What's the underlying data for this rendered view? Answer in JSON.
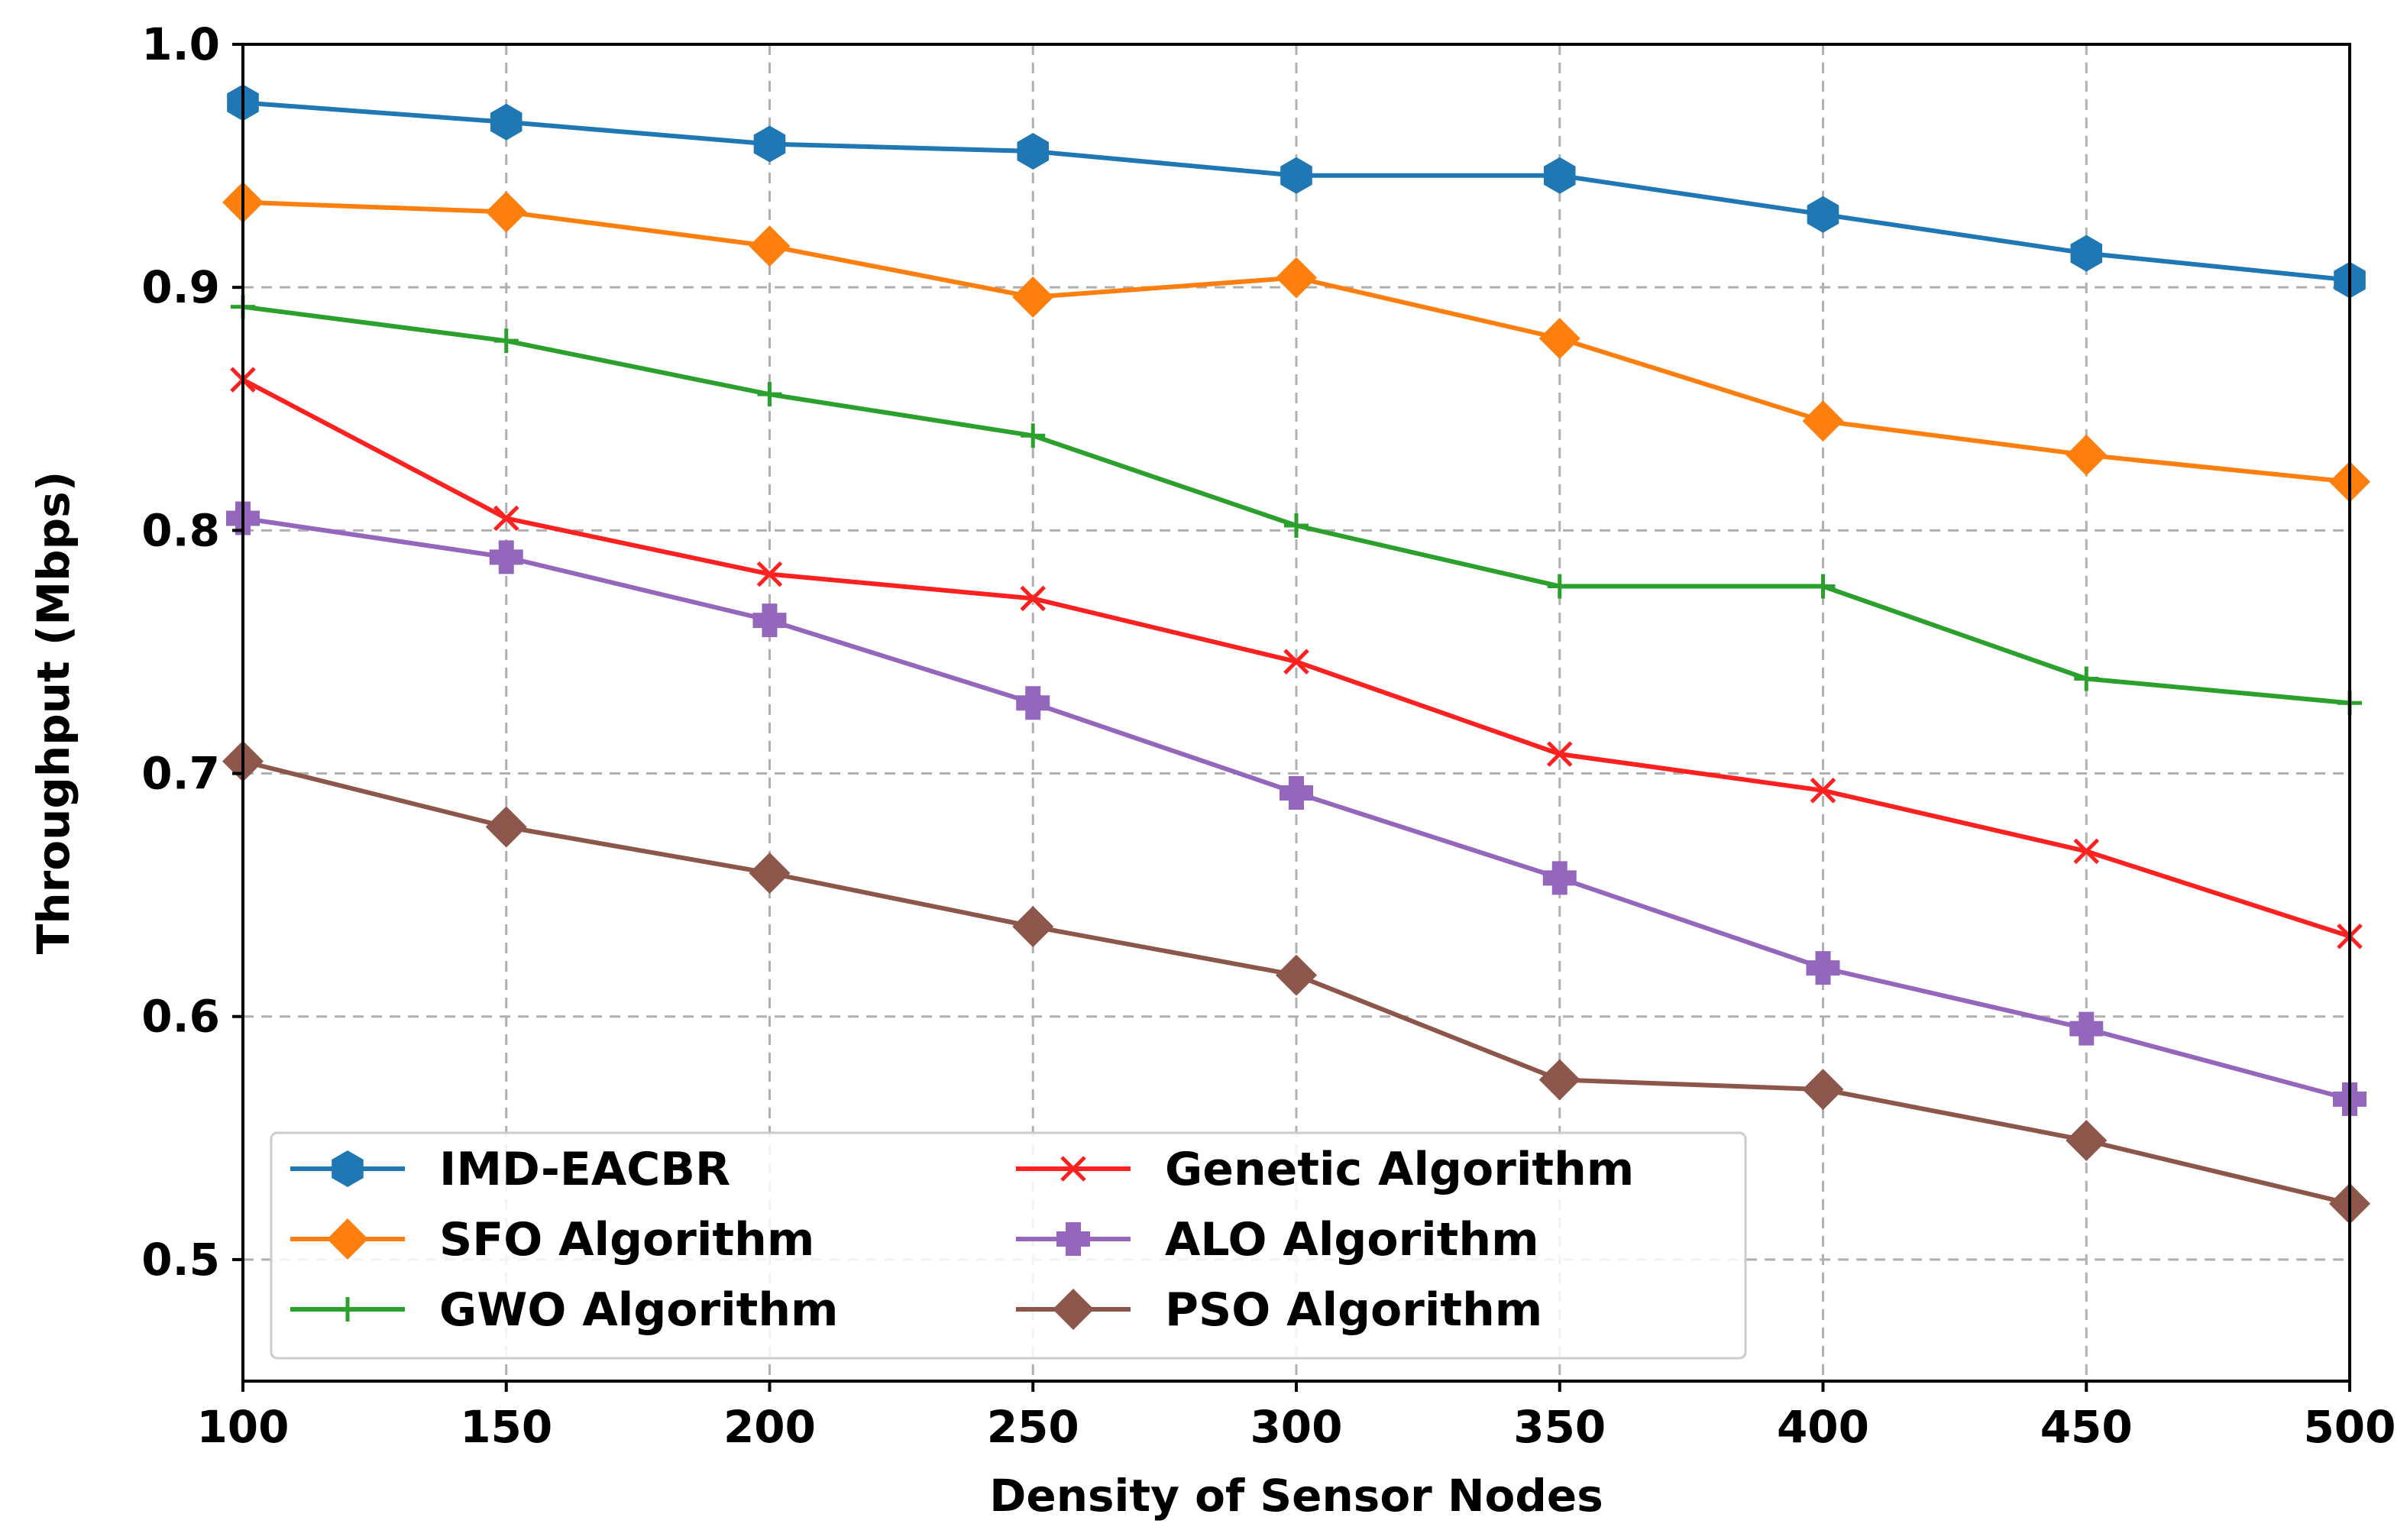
{
  "chart_data": {
    "type": "line",
    "title": "",
    "xlabel": "Density of Sensor Nodes",
    "ylabel": "Throughput (Mbps)",
    "x": [
      100,
      150,
      200,
      250,
      300,
      350,
      400,
      450,
      500
    ],
    "xlim": [
      100,
      500
    ],
    "ylim": [
      0.45,
      1.0
    ],
    "xticks": [
      "100",
      "150",
      "200",
      "250",
      "300",
      "350",
      "400",
      "450",
      "500"
    ],
    "yticks": [
      "0.5",
      "0.6",
      "0.7",
      "0.8",
      "0.9",
      "1.0"
    ],
    "grid": true,
    "legend_position": "lower-left",
    "series": [
      {
        "name": "IMD-EACBR",
        "color": "#1f77b4",
        "marker": "hexagon",
        "values": [
          0.976,
          0.968,
          0.959,
          0.956,
          0.946,
          0.946,
          0.93,
          0.914,
          0.903
        ]
      },
      {
        "name": "SFO Algorithm",
        "color": "#ff7f0e",
        "marker": "diamond",
        "values": [
          0.935,
          0.931,
          0.917,
          0.896,
          0.904,
          0.879,
          0.845,
          0.831,
          0.82
        ]
      },
      {
        "name": "GWO Algorithm",
        "color": "#2ca02c",
        "marker": "plus",
        "values": [
          0.892,
          0.878,
          0.856,
          0.839,
          0.802,
          0.777,
          0.777,
          0.739,
          0.729
        ]
      },
      {
        "name": "Genetic Algorithm",
        "color": "#ff2020",
        "marker": "x",
        "values": [
          0.862,
          0.805,
          0.782,
          0.772,
          0.746,
          0.708,
          0.693,
          0.668,
          0.633
        ]
      },
      {
        "name": "ALO Algorithm",
        "color": "#9467bd",
        "marker": "plus-filled",
        "values": [
          0.805,
          0.789,
          0.763,
          0.729,
          0.692,
          0.657,
          0.62,
          0.595,
          0.566
        ]
      },
      {
        "name": "PSO Algorithm",
        "color": "#8c564b",
        "marker": "diamond",
        "values": [
          0.705,
          0.678,
          0.659,
          0.637,
          0.617,
          0.574,
          0.57,
          0.549,
          0.523
        ]
      }
    ]
  }
}
